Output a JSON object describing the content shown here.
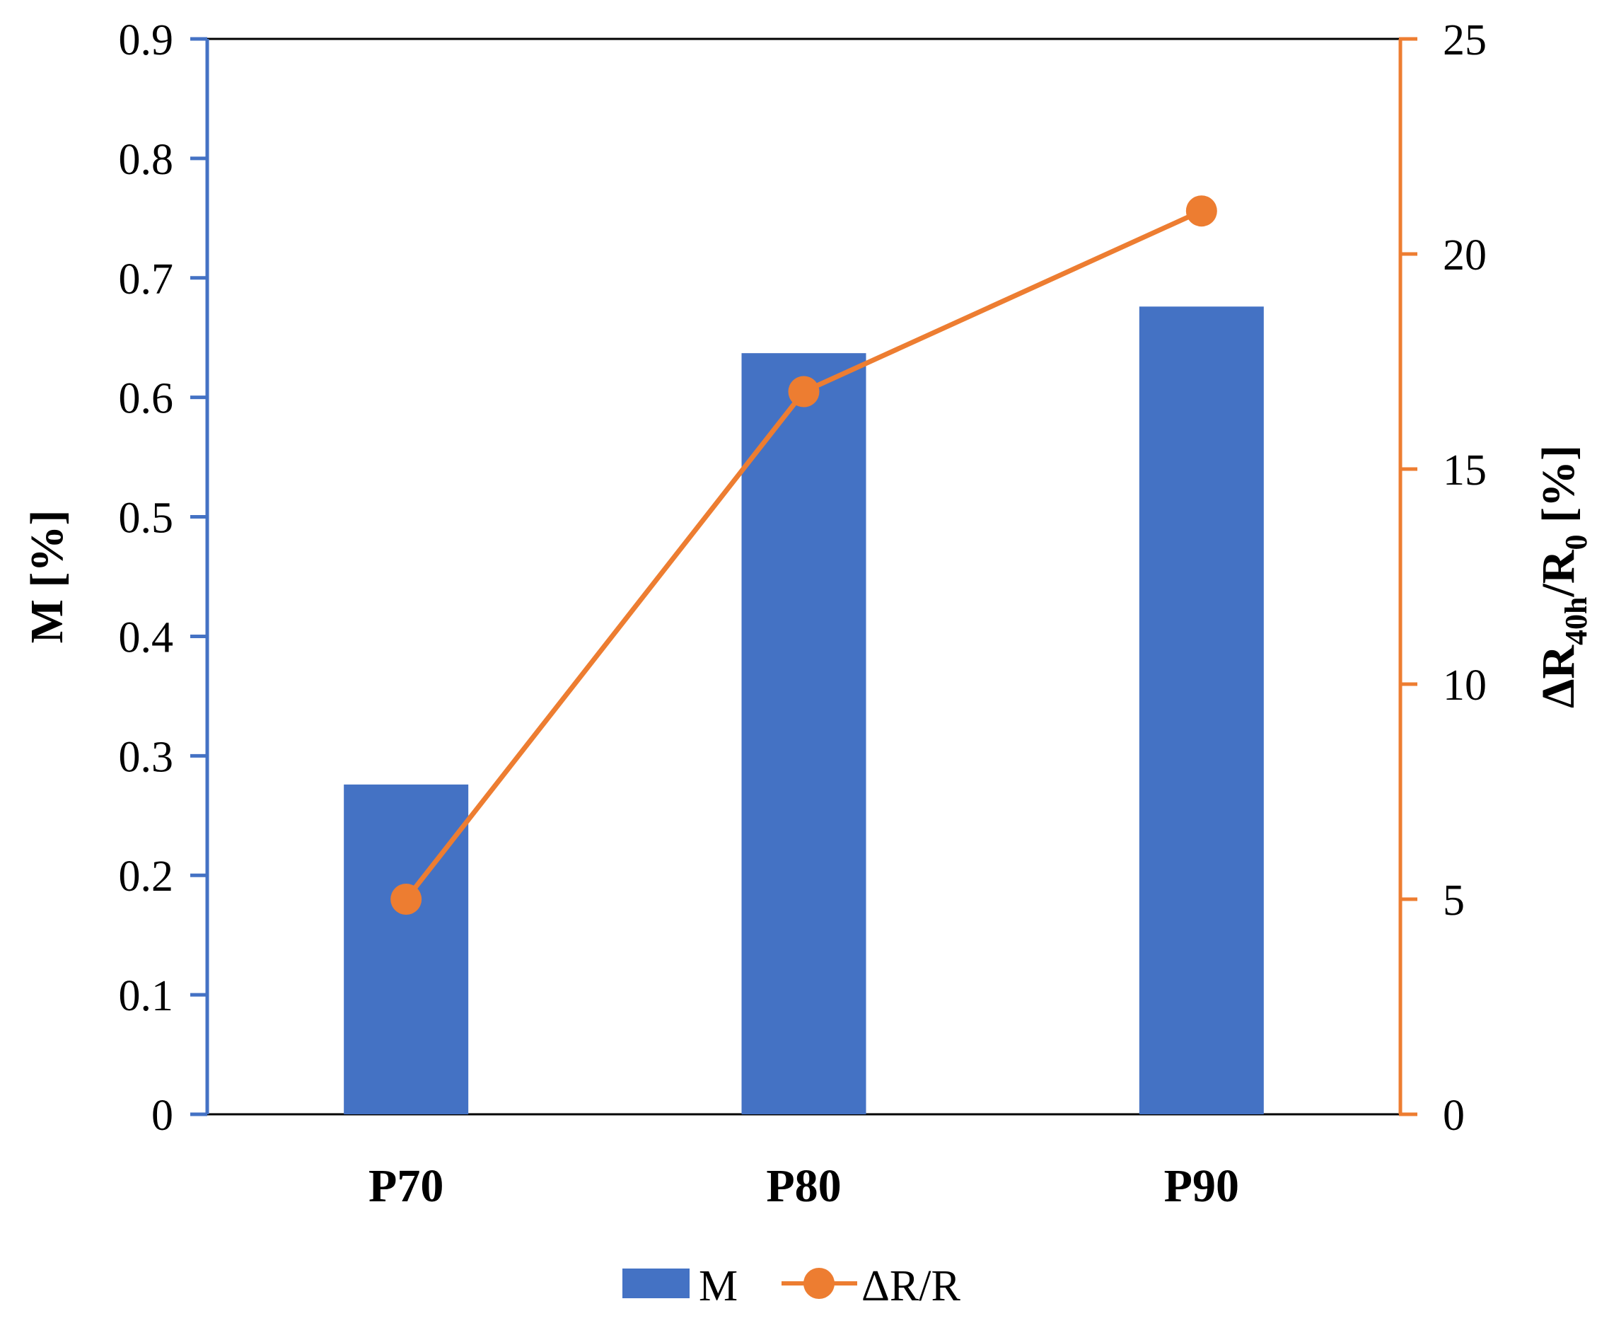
{
  "chart_data": {
    "type": "bar+line",
    "categories": [
      "P70",
      "P80",
      "P90"
    ],
    "series": [
      {
        "name": "M",
        "type": "bar",
        "axis": "left",
        "values": [
          0.276,
          0.637,
          0.676
        ]
      },
      {
        "name": "ΔR/R",
        "type": "line",
        "axis": "right",
        "values": [
          5.0,
          16.8,
          21.0
        ]
      }
    ],
    "y_left": {
      "label_main": "M [%]",
      "range": [
        0,
        0.9
      ],
      "ticks": [
        "0",
        "0.1",
        "0.2",
        "0.3",
        "0.4",
        "0.5",
        "0.6",
        "0.7",
        "0.8",
        "0.9"
      ],
      "color": "#4472C4"
    },
    "y_right": {
      "label_prefix": "ΔR",
      "label_sub1": "40h",
      "label_mid": "/R",
      "label_sub2": "0",
      "label_suffix": " [%]",
      "range": [
        0,
        25
      ],
      "ticks": [
        "0",
        "5",
        "10",
        "15",
        "20",
        "25"
      ],
      "color": "#ED7D31"
    },
    "grid": false,
    "legend": {
      "placement": "bottom",
      "entries": [
        "M",
        "ΔR/R"
      ]
    },
    "colors": {
      "bar": "#4472C4",
      "line": "#ED7D31"
    }
  }
}
